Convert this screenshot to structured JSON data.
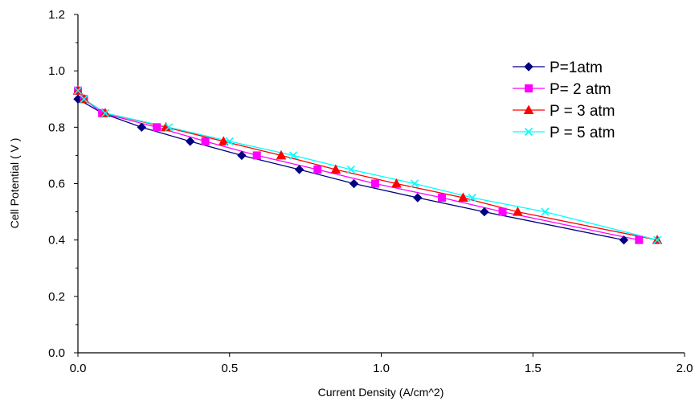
{
  "chart_data": {
    "type": "line",
    "title": "",
    "xlabel": "Current Density (A/cm^2)",
    "ylabel": "Cell Potential ( V )",
    "xlim": [
      0.0,
      2.0
    ],
    "ylim": [
      0.0,
      1.2
    ],
    "xticks": [
      "0.0",
      "0.5",
      "1.0",
      "1.5",
      "2.0"
    ],
    "yticks": [
      "0.0",
      "0.2",
      "0.4",
      "0.6",
      "0.8",
      "1.0",
      "1.2"
    ],
    "grid": false,
    "legend_position": "right",
    "series": [
      {
        "name": "P=1atm",
        "color": "#000080",
        "marker": "diamond",
        "points": [
          [
            0.0,
            0.9
          ],
          [
            0.08,
            0.85
          ],
          [
            0.21,
            0.8
          ],
          [
            0.37,
            0.75
          ],
          [
            0.54,
            0.7
          ],
          [
            0.73,
            0.65
          ],
          [
            0.91,
            0.6
          ],
          [
            1.12,
            0.55
          ],
          [
            1.34,
            0.5
          ],
          [
            1.8,
            0.4
          ]
        ]
      },
      {
        "name": "P= 2 atm",
        "color": "#ff00ff",
        "marker": "square",
        "points": [
          [
            0.0,
            0.93
          ],
          [
            0.02,
            0.9
          ],
          [
            0.08,
            0.85
          ],
          [
            0.26,
            0.8
          ],
          [
            0.42,
            0.75
          ],
          [
            0.59,
            0.7
          ],
          [
            0.79,
            0.65
          ],
          [
            0.98,
            0.6
          ],
          [
            1.2,
            0.55
          ],
          [
            1.4,
            0.5
          ],
          [
            1.85,
            0.4
          ]
        ]
      },
      {
        "name": "P = 3 atm",
        "color": "#ff0000",
        "marker": "triangle",
        "points": [
          [
            0.0,
            0.93
          ],
          [
            0.02,
            0.9
          ],
          [
            0.09,
            0.85
          ],
          [
            0.29,
            0.8
          ],
          [
            0.48,
            0.75
          ],
          [
            0.67,
            0.7
          ],
          [
            0.85,
            0.65
          ],
          [
            1.05,
            0.6
          ],
          [
            1.27,
            0.55
          ],
          [
            1.45,
            0.5
          ],
          [
            1.91,
            0.4
          ]
        ]
      },
      {
        "name": "P = 5 atm",
        "color": "#00ffff",
        "marker": "x",
        "points": [
          [
            0.0,
            0.93
          ],
          [
            0.02,
            0.9
          ],
          [
            0.09,
            0.85
          ],
          [
            0.3,
            0.8
          ],
          [
            0.5,
            0.75
          ],
          [
            0.71,
            0.7
          ],
          [
            0.9,
            0.65
          ],
          [
            1.11,
            0.6
          ],
          [
            1.3,
            0.55
          ],
          [
            1.54,
            0.5
          ],
          [
            1.91,
            0.4
          ]
        ]
      }
    ]
  }
}
